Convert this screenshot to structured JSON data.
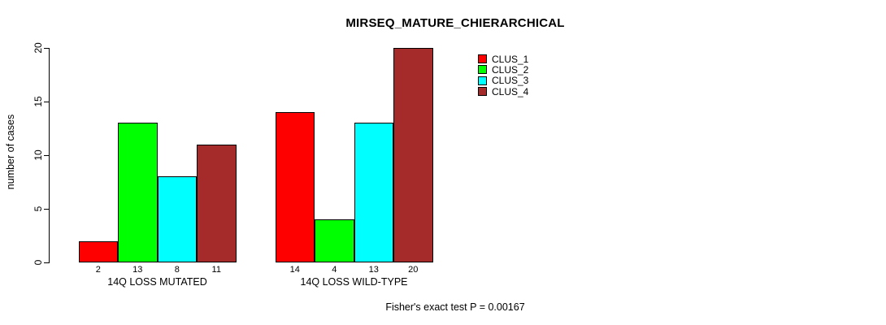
{
  "title": "MIRSEQ_MATURE_CHIERARCHICAL",
  "ylabel": "number of cases",
  "annotation": "Fisher's exact test P = 0.00167",
  "chart_data": {
    "type": "bar",
    "title": "MIRSEQ_MATURE_CHIERARCHICAL",
    "xlabel": "",
    "ylabel": "number of cases",
    "categories": [
      "14Q LOSS MUTATED",
      "14Q LOSS WILD-TYPE"
    ],
    "series": [
      {
        "name": "CLUS_1",
        "color": "#FF0000",
        "values": [
          2,
          14
        ]
      },
      {
        "name": "CLUS_2",
        "color": "#00FF00",
        "values": [
          13,
          4
        ]
      },
      {
        "name": "CLUS_3",
        "color": "#00FFFF",
        "values": [
          8,
          13
        ]
      },
      {
        "name": "CLUS_4",
        "color": "#A52A2A",
        "values": [
          11,
          20
        ]
      }
    ],
    "bar_value_labels": [
      [
        2,
        13,
        8,
        11
      ],
      [
        14,
        4,
        13,
        20
      ]
    ],
    "yticks": [
      0,
      5,
      10,
      15,
      20
    ],
    "ylim": [
      0,
      20
    ],
    "grid": false,
    "legend_position": "inside-top-right",
    "bar_border_color": "#000000",
    "annotation": "Fisher's exact test P = 0.00167"
  }
}
